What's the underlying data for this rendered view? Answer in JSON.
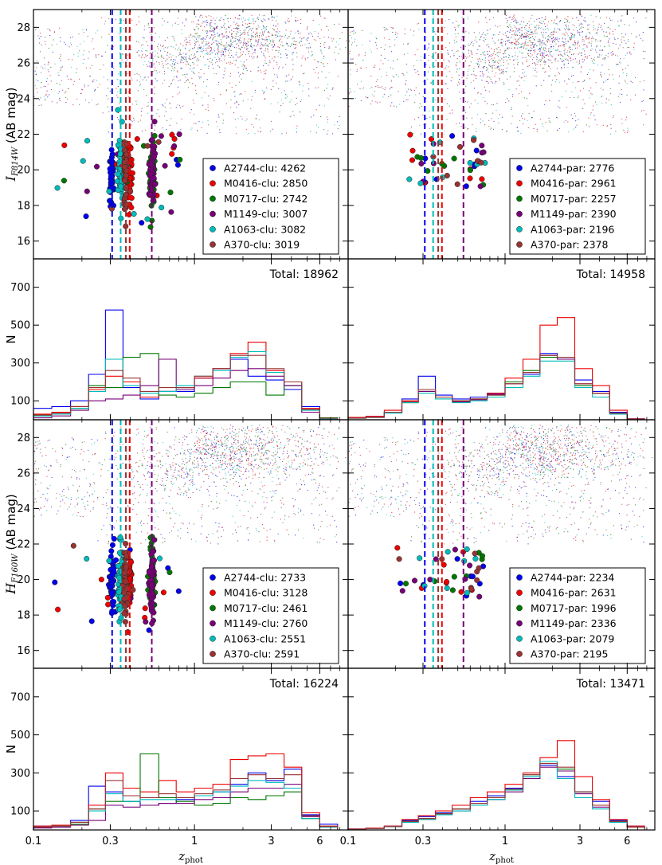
{
  "figure": {
    "description_free": true
  },
  "colors": {
    "A2744": "#0000ee",
    "M0416": "#ee0000",
    "M0717": "#007700",
    "M1149": "#770077",
    "A1063": "#00bbbb",
    "A370": "#993333"
  },
  "axes_text": {
    "xlabel_main": "z",
    "xlabel_sub": "phot",
    "ylabel_I_main": "I",
    "ylabel_I_sub": "F814W",
    "ylabel_I_suffix": " (AB mag)",
    "ylabel_H_main": "H",
    "ylabel_H_sub": "F160W",
    "ylabel_H_suffix": " (AB mag)",
    "ylabel_hist": "N",
    "x_ticks": [
      "0.1",
      "0.3",
      "1",
      "3",
      "6"
    ],
    "x_tick_values": [
      0.1,
      0.3,
      1,
      3,
      6
    ],
    "mag_ticks": [
      "16",
      "18",
      "20",
      "22",
      "24",
      "26",
      "28"
    ],
    "mag_tick_values": [
      16,
      18,
      20,
      22,
      24,
      26,
      28
    ],
    "hist_ticks": [
      "100",
      "300",
      "500",
      "700"
    ],
    "hist_tick_values": [
      100,
      300,
      500,
      700
    ]
  },
  "chart_data": [
    {
      "type": "scatter",
      "panel": "I-band clusters",
      "xscale": "log",
      "xlim": [
        0.1,
        9
      ],
      "ylim": [
        15,
        29
      ],
      "ylabel": "I_F814W (AB mag)",
      "cluster_redshifts": {
        "A2744": 0.308,
        "A1063": 0.348,
        "A370": 0.375,
        "M0416": 0.396,
        "M0717": 0.545,
        "M1149": 0.543
      },
      "legend_position": "lower-right",
      "legend": [
        {
          "key": "A2744",
          "label": "A2744-clu: 4262"
        },
        {
          "key": "M0416",
          "label": "M0416-clu: 2850"
        },
        {
          "key": "M0717",
          "label": "M0717-clu: 2742"
        },
        {
          "key": "M1149",
          "label": "M1149-clu: 3007"
        },
        {
          "key": "A1063",
          "label": "A1063-clu: 3082"
        },
        {
          "key": "A370",
          "label": "A370-clu: 3019"
        }
      ]
    },
    {
      "type": "scatter",
      "panel": "I-band parallels",
      "xscale": "log",
      "xlim": [
        0.1,
        9
      ],
      "ylim": [
        15,
        29
      ],
      "cluster_redshifts": {
        "A2744": 0.308,
        "A1063": 0.348,
        "A370": 0.375,
        "M0416": 0.396,
        "M0717": 0.545,
        "M1149": 0.543
      },
      "legend_position": "lower-right",
      "legend": [
        {
          "key": "A2744",
          "label": "A2744-par: 2776"
        },
        {
          "key": "M0416",
          "label": "M0416-par: 2961"
        },
        {
          "key": "M0717",
          "label": "M0717-par: 2257"
        },
        {
          "key": "M1149",
          "label": "M1149-par: 2390"
        },
        {
          "key": "A1063",
          "label": "A1063-par: 2196"
        },
        {
          "key": "A370",
          "label": "A370-par: 2378"
        }
      ]
    },
    {
      "type": "histogram",
      "panel": "I-band clusters N(z)",
      "xscale": "log",
      "xlim": [
        0.1,
        9
      ],
      "ylim": [
        0,
        850
      ],
      "total_label": "Total: 18962",
      "bin_edges": [
        0.1,
        0.13,
        0.17,
        0.22,
        0.28,
        0.36,
        0.46,
        0.6,
        0.77,
        1.0,
        1.3,
        1.67,
        2.15,
        2.78,
        3.6,
        4.64,
        6.0,
        7.74
      ],
      "series": [
        {
          "key": "A2744",
          "values": [
            60,
            70,
            100,
            240,
            580,
            170,
            110,
            150,
            150,
            220,
            270,
            320,
            230,
            210,
            160,
            70,
            10
          ]
        },
        {
          "key": "M0416",
          "values": [
            30,
            40,
            70,
            160,
            230,
            200,
            120,
            150,
            170,
            220,
            270,
            350,
            410,
            260,
            200,
            60,
            10
          ]
        },
        {
          "key": "M0717",
          "values": [
            20,
            30,
            60,
            180,
            170,
            330,
            350,
            130,
            120,
            140,
            170,
            200,
            200,
            130,
            180,
            40,
            10
          ]
        },
        {
          "key": "M1149",
          "values": [
            10,
            20,
            50,
            100,
            110,
            130,
            180,
            320,
            160,
            180,
            220,
            260,
            270,
            230,
            180,
            40,
            5
          ]
        },
        {
          "key": "A1063",
          "values": [
            20,
            30,
            60,
            150,
            320,
            180,
            140,
            150,
            180,
            230,
            260,
            330,
            360,
            250,
            200,
            50,
            5
          ]
        },
        {
          "key": "A370",
          "values": [
            25,
            35,
            70,
            170,
            260,
            220,
            150,
            170,
            170,
            230,
            270,
            340,
            340,
            270,
            200,
            55,
            8
          ]
        }
      ]
    },
    {
      "type": "histogram",
      "panel": "I-band parallels N(z)",
      "xscale": "log",
      "xlim": [
        0.1,
        9
      ],
      "ylim": [
        0,
        850
      ],
      "total_label": "Total: 14958",
      "bin_edges": [
        0.1,
        0.13,
        0.17,
        0.22,
        0.28,
        0.36,
        0.46,
        0.6,
        0.77,
        1.0,
        1.3,
        1.67,
        2.15,
        2.78,
        3.6,
        4.64,
        6.0,
        7.74
      ],
      "series": [
        {
          "key": "A2744",
          "values": [
            10,
            15,
            40,
            110,
            230,
            130,
            110,
            120,
            140,
            200,
            240,
            350,
            330,
            210,
            150,
            40,
            5
          ]
        },
        {
          "key": "M0416",
          "values": [
            12,
            18,
            50,
            100,
            160,
            120,
            100,
            110,
            140,
            220,
            320,
            500,
            540,
            270,
            180,
            50,
            5
          ]
        },
        {
          "key": "M0717",
          "values": [
            8,
            12,
            40,
            90,
            150,
            110,
            100,
            110,
            130,
            200,
            260,
            330,
            320,
            180,
            140,
            35,
            4
          ]
        },
        {
          "key": "M1149",
          "values": [
            9,
            13,
            40,
            95,
            150,
            120,
            95,
            105,
            135,
            190,
            250,
            340,
            320,
            190,
            140,
            35,
            4
          ]
        },
        {
          "key": "A1063",
          "values": [
            8,
            12,
            35,
            90,
            140,
            110,
            90,
            100,
            120,
            170,
            230,
            310,
            310,
            170,
            120,
            30,
            4
          ]
        },
        {
          "key": "A370",
          "values": [
            9,
            13,
            40,
            95,
            160,
            120,
            100,
            110,
            130,
            190,
            250,
            340,
            330,
            190,
            140,
            35,
            4
          ]
        }
      ]
    },
    {
      "type": "scatter",
      "panel": "H-band clusters",
      "xscale": "log",
      "xlim": [
        0.1,
        9
      ],
      "ylim": [
        15,
        29
      ],
      "ylabel": "H_F160W (AB mag)",
      "cluster_redshifts": {
        "A2744": 0.308,
        "A1063": 0.348,
        "A370": 0.375,
        "M0416": 0.396,
        "M0717": 0.545,
        "M1149": 0.543
      },
      "legend_position": "lower-right",
      "legend": [
        {
          "key": "A2744",
          "label": "A2744-clu: 2733"
        },
        {
          "key": "M0416",
          "label": "M0416-clu: 3128"
        },
        {
          "key": "M0717",
          "label": "M0717-clu: 2461"
        },
        {
          "key": "M1149",
          "label": "M1149-clu: 2760"
        },
        {
          "key": "A1063",
          "label": "A1063-clu: 2551"
        },
        {
          "key": "A370",
          "label": "A370-clu: 2591"
        }
      ]
    },
    {
      "type": "scatter",
      "panel": "H-band parallels",
      "xscale": "log",
      "xlim": [
        0.1,
        9
      ],
      "ylim": [
        15,
        29
      ],
      "cluster_redshifts": {
        "A2744": 0.308,
        "A1063": 0.348,
        "A370": 0.375,
        "M0416": 0.396,
        "M0717": 0.545,
        "M1149": 0.543
      },
      "legend_position": "lower-right",
      "legend": [
        {
          "key": "A2744",
          "label": "A2744-par: 2234"
        },
        {
          "key": "M0416",
          "label": "M0416-par: 2631"
        },
        {
          "key": "M0717",
          "label": "M0717-par: 1996"
        },
        {
          "key": "M1149",
          "label": "M1149-par: 2336"
        },
        {
          "key": "A1063",
          "label": "A1063-par: 2079"
        },
        {
          "key": "A370",
          "label": "A370-par: 2195"
        }
      ]
    },
    {
      "type": "histogram",
      "panel": "H-band clusters N(z)",
      "xscale": "log",
      "xlim": [
        0.1,
        9
      ],
      "ylim": [
        0,
        850
      ],
      "total_label": "Total: 16224",
      "bin_edges": [
        0.1,
        0.13,
        0.17,
        0.22,
        0.28,
        0.36,
        0.46,
        0.6,
        0.77,
        1.0,
        1.3,
        1.67,
        2.15,
        2.78,
        3.6,
        4.64,
        6.0,
        7.74
      ],
      "series": [
        {
          "key": "A2744",
          "values": [
            20,
            25,
            50,
            230,
            200,
            150,
            130,
            140,
            160,
            180,
            200,
            240,
            300,
            260,
            320,
            80,
            30
          ]
        },
        {
          "key": "M0416",
          "values": [
            20,
            25,
            40,
            130,
            300,
            220,
            200,
            260,
            200,
            220,
            240,
            370,
            390,
            400,
            330,
            90,
            20
          ]
        },
        {
          "key": "M0717",
          "values": [
            15,
            20,
            30,
            110,
            150,
            150,
            400,
            170,
            150,
            130,
            140,
            170,
            160,
            180,
            200,
            60,
            15
          ]
        },
        {
          "key": "M1149",
          "values": [
            10,
            15,
            25,
            50,
            130,
            120,
            130,
            140,
            140,
            160,
            170,
            200,
            220,
            220,
            240,
            70,
            15
          ]
        },
        {
          "key": "A1063",
          "values": [
            15,
            20,
            40,
            100,
            190,
            150,
            160,
            160,
            170,
            180,
            200,
            230,
            260,
            250,
            220,
            60,
            15
          ]
        },
        {
          "key": "A370",
          "values": [
            15,
            20,
            40,
            110,
            260,
            180,
            170,
            190,
            170,
            190,
            210,
            270,
            290,
            270,
            290,
            75,
            18
          ]
        }
      ]
    },
    {
      "type": "histogram",
      "panel": "H-band parallels N(z)",
      "xscale": "log",
      "xlim": [
        0.1,
        9
      ],
      "ylim": [
        0,
        850
      ],
      "total_label": "Total: 13471",
      "bin_edges": [
        0.1,
        0.13,
        0.17,
        0.22,
        0.28,
        0.36,
        0.46,
        0.6,
        0.77,
        1.0,
        1.3,
        1.67,
        2.15,
        2.78,
        3.6,
        4.64,
        6.0,
        7.74
      ],
      "series": [
        {
          "key": "A2744",
          "values": [
            5,
            10,
            20,
            50,
            70,
            90,
            110,
            150,
            180,
            220,
            280,
            340,
            280,
            200,
            150,
            50,
            20
          ]
        },
        {
          "key": "M0416",
          "values": [
            5,
            10,
            20,
            55,
            75,
            100,
            130,
            170,
            200,
            240,
            300,
            380,
            470,
            280,
            160,
            55,
            20
          ]
        },
        {
          "key": "M0717",
          "values": [
            4,
            8,
            18,
            45,
            60,
            85,
            110,
            140,
            170,
            210,
            290,
            360,
            320,
            200,
            130,
            45,
            15
          ]
        },
        {
          "key": "M1149",
          "values": [
            4,
            8,
            18,
            40,
            55,
            80,
            100,
            130,
            160,
            200,
            270,
            330,
            310,
            190,
            120,
            40,
            15
          ]
        },
        {
          "key": "A1063",
          "values": [
            4,
            8,
            18,
            40,
            55,
            80,
            100,
            130,
            160,
            210,
            280,
            360,
            270,
            170,
            110,
            40,
            15
          ]
        },
        {
          "key": "A370",
          "values": [
            4,
            8,
            18,
            45,
            60,
            85,
            110,
            140,
            170,
            215,
            290,
            350,
            330,
            200,
            130,
            45,
            15
          ]
        }
      ]
    }
  ]
}
